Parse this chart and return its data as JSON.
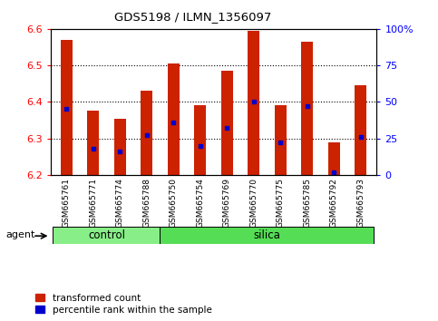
{
  "title": "GDS5198 / ILMN_1356097",
  "samples": [
    "GSM665761",
    "GSM665771",
    "GSM665774",
    "GSM665788",
    "GSM665750",
    "GSM665754",
    "GSM665769",
    "GSM665770",
    "GSM665775",
    "GSM665785",
    "GSM665792",
    "GSM665793"
  ],
  "groups": [
    "control",
    "control",
    "control",
    "control",
    "silica",
    "silica",
    "silica",
    "silica",
    "silica",
    "silica",
    "silica",
    "silica"
  ],
  "transformed_counts": [
    6.57,
    6.375,
    6.355,
    6.43,
    6.505,
    6.39,
    6.485,
    6.595,
    6.39,
    6.565,
    6.29,
    6.445
  ],
  "percentile_ranks": [
    45,
    18,
    16,
    27,
    36,
    20,
    32,
    50,
    22,
    47,
    2,
    26
  ],
  "ylim_left": [
    6.2,
    6.6
  ],
  "ylim_right": [
    0,
    100
  ],
  "bar_color": "#cc2200",
  "dot_color": "#0000cc",
  "control_color": "#88ee88",
  "silica_color": "#55dd55",
  "base_value": 6.2,
  "bar_width": 0.45
}
